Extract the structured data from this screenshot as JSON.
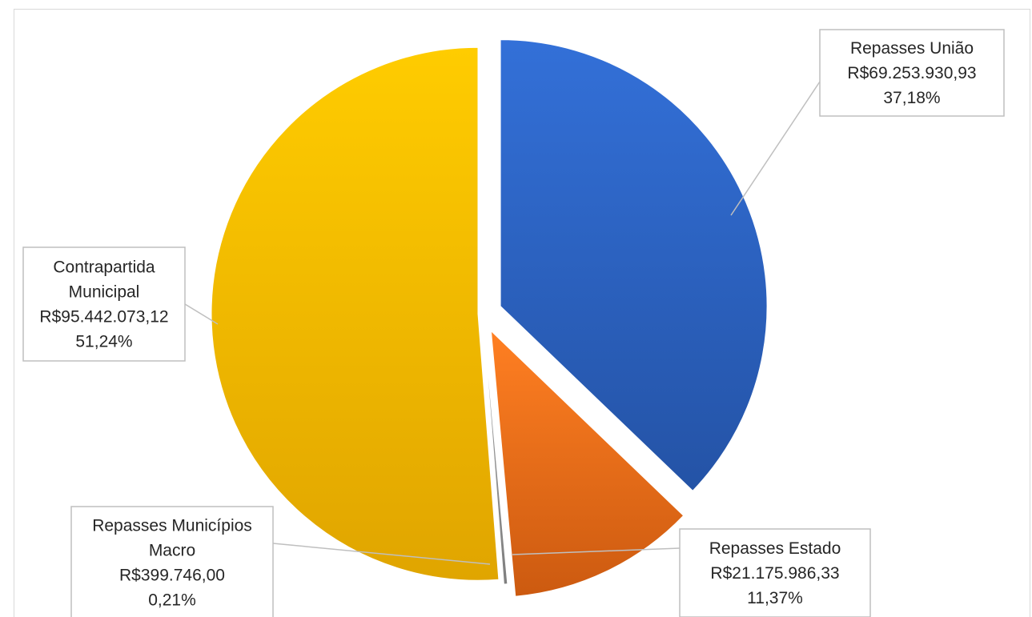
{
  "chart_data": {
    "type": "pie",
    "title": "",
    "legend": "none",
    "exploded": true,
    "slices": [
      {
        "name": "Repasses União",
        "value": 69253930.93,
        "value_label": "R$69.253.930,93",
        "percent": 37.18,
        "percent_label": "37,18%",
        "color_top": "#3370d8",
        "color_bottom": "#2453a6"
      },
      {
        "name": "Repasses Estado",
        "value": 21175986.33,
        "value_label": "R$21.175.986,33",
        "percent": 11.37,
        "percent_label": "11,37%",
        "color_top": "#ff7f22",
        "color_bottom": "#cc5a10"
      },
      {
        "name": "Repasses Municípios Macro",
        "value": 399746.0,
        "value_label": "R$399.746,00",
        "percent": 0.21,
        "percent_label": "0,21%",
        "color_top": "#a5a5a5",
        "color_bottom": "#7f7f7f"
      },
      {
        "name": "Contrapartida Municipal",
        "value": 95442073.12,
        "value_label": "R$95.442.073,12",
        "percent": 51.24,
        "percent_label": "51,24%",
        "color_top": "#ffcc00",
        "color_bottom": "#e0a500"
      }
    ],
    "data_labels": [
      {
        "slice": 0,
        "lines": [
          "Repasses União",
          "R$69.253.930,93",
          "37,18%"
        ]
      },
      {
        "slice": 1,
        "lines": [
          "Repasses Estado",
          "R$21.175.986,33",
          "11,37%"
        ]
      },
      {
        "slice": 2,
        "lines": [
          "Repasses Municípios",
          "Macro",
          "R$399.746,00",
          "0,21%"
        ]
      },
      {
        "slice": 3,
        "lines": [
          "Contrapartida",
          "Municipal",
          "R$95.442.073,12",
          "51,24%"
        ]
      }
    ]
  }
}
